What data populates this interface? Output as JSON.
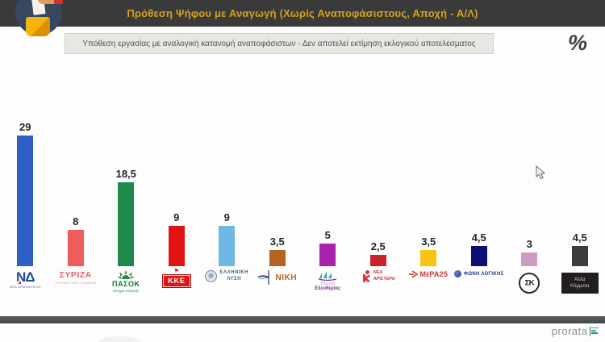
{
  "header": {
    "title": "Πρόθεση Ψήφου με Αναγωγή (Χωρίς Αναποφάσιστους, Αποχή - Α/Λ)"
  },
  "subtitle": {
    "text": "Υπόθεση εργασίας με αναλογική κατανομή αναποφάσιστων - Δεν αποτελεί εκτίμηση εκλογικού αποτελέσματος",
    "percent_symbol": "%"
  },
  "footer": {
    "brand": "prorata"
  },
  "chart_data": {
    "type": "bar",
    "title": "Πρόθεση Ψήφου με Αναγωγή (Χωρίς Αναποφάσιστους, Αποχή - Α/Λ)",
    "note": "Υπόθεση εργασίας με αναλογική κατανομή αναποφάσιστων - Δεν αποτελεί εκτίμηση εκλογικού αποτελέσματος",
    "unit": "%",
    "grid": false,
    "legend": false,
    "ylim": [
      0,
      30
    ],
    "categories": [
      "Νέα Δημοκρατία",
      "ΣΥΡΙΖΑ",
      "ΠΑΣΟΚ",
      "ΚΚΕ",
      "Ελληνική Λύση",
      "ΝΙΚΗ",
      "Πλεύση Ελευθερίας",
      "Νέα Αριστερά",
      "MέΡΑ25",
      "Φωνή Λογικής",
      "ΣΚ",
      "Άλλα Κόμματα"
    ],
    "values": [
      29,
      8,
      18.5,
      9,
      9,
      3.5,
      5,
      2.5,
      3.5,
      4.5,
      3,
      4.5
    ],
    "value_labels": [
      "29",
      "8",
      "18,5",
      "9",
      "9",
      "3,5",
      "5",
      "2,5",
      "3,5",
      "4,5",
      "3",
      "4,5"
    ],
    "colors": [
      "#2e5fc7",
      "#f05c5c",
      "#1e8b4b",
      "#e01212",
      "#6fb8e6",
      "#b4641e",
      "#a822ac",
      "#cc2328",
      "#f6c513",
      "#0d0d72",
      "#cd9bc6",
      "#403c3a"
    ],
    "parties": [
      {
        "name": "Νέα Δημοκρατία",
        "value": 29,
        "label": "29",
        "color": "#2e5fc7",
        "logo_main": "ΝΔ",
        "logo_caption": "ΝΕΑ ΔΗΜΟΚΡΑΤΙΑ"
      },
      {
        "name": "ΣΥΡΙΖΑ",
        "value": 8,
        "label": "8",
        "color": "#f05c5c",
        "logo_main": "ΣΥΡΙΖΑ",
        "logo_caption": "ΠΡΟΟΔΕΥΤΙΚΗ ΣΥΜΜΑΧΙΑ"
      },
      {
        "name": "ΠΑΣΟΚ",
        "value": 18.5,
        "label": "18,5",
        "color": "#1e8b4b",
        "logo_main": "ΠΑΣΟΚ",
        "logo_caption": "Κίνημα Αλλαγής"
      },
      {
        "name": "ΚΚΕ",
        "value": 9,
        "label": "9",
        "color": "#e01212",
        "logo_main": "ΚΚΕ"
      },
      {
        "name": "Ελληνική Λύση",
        "value": 9,
        "label": "9",
        "color": "#6fb8e6",
        "logo_line1": "ΕΛΛΗΝΙΚΗ",
        "logo_line2": "ΛΥΣΗ"
      },
      {
        "name": "ΝΙΚΗ",
        "value": 3.5,
        "label": "3,5",
        "color": "#b4641e",
        "logo_main": "ΝΙΚΗ"
      },
      {
        "name": "Πλεύση Ελευθερίας",
        "value": 5,
        "label": "5",
        "color": "#a822ac",
        "logo_line1": "Πλεύση",
        "logo_line2": "Ελευθερίας"
      },
      {
        "name": "Νέα Αριστερά",
        "value": 2.5,
        "label": "2,5",
        "color": "#cc2328",
        "logo_line1": "ΝΕΑ",
        "logo_line2": "ΑΡΙΣΤΕΡΑ"
      },
      {
        "name": "MέΡΑ25",
        "value": 3.5,
        "label": "3,5",
        "color": "#f6c513",
        "logo_main": "MέΡΑ25"
      },
      {
        "name": "Φωνή Λογικής",
        "value": 4.5,
        "label": "4,5",
        "color": "#0d0d72",
        "logo_main": "ΦΩΝΗ ΛΟΓΙΚΗΣ"
      },
      {
        "name": "ΣΚ",
        "value": 3,
        "label": "3",
        "color": "#cd9bc6",
        "logo_main": "ΣΚ"
      },
      {
        "name": "Άλλα Κόμματα",
        "value": 4.5,
        "label": "4,5",
        "color": "#403c3a",
        "logo_line1": "Άλλα",
        "logo_line2": "Κόμματα"
      }
    ]
  }
}
